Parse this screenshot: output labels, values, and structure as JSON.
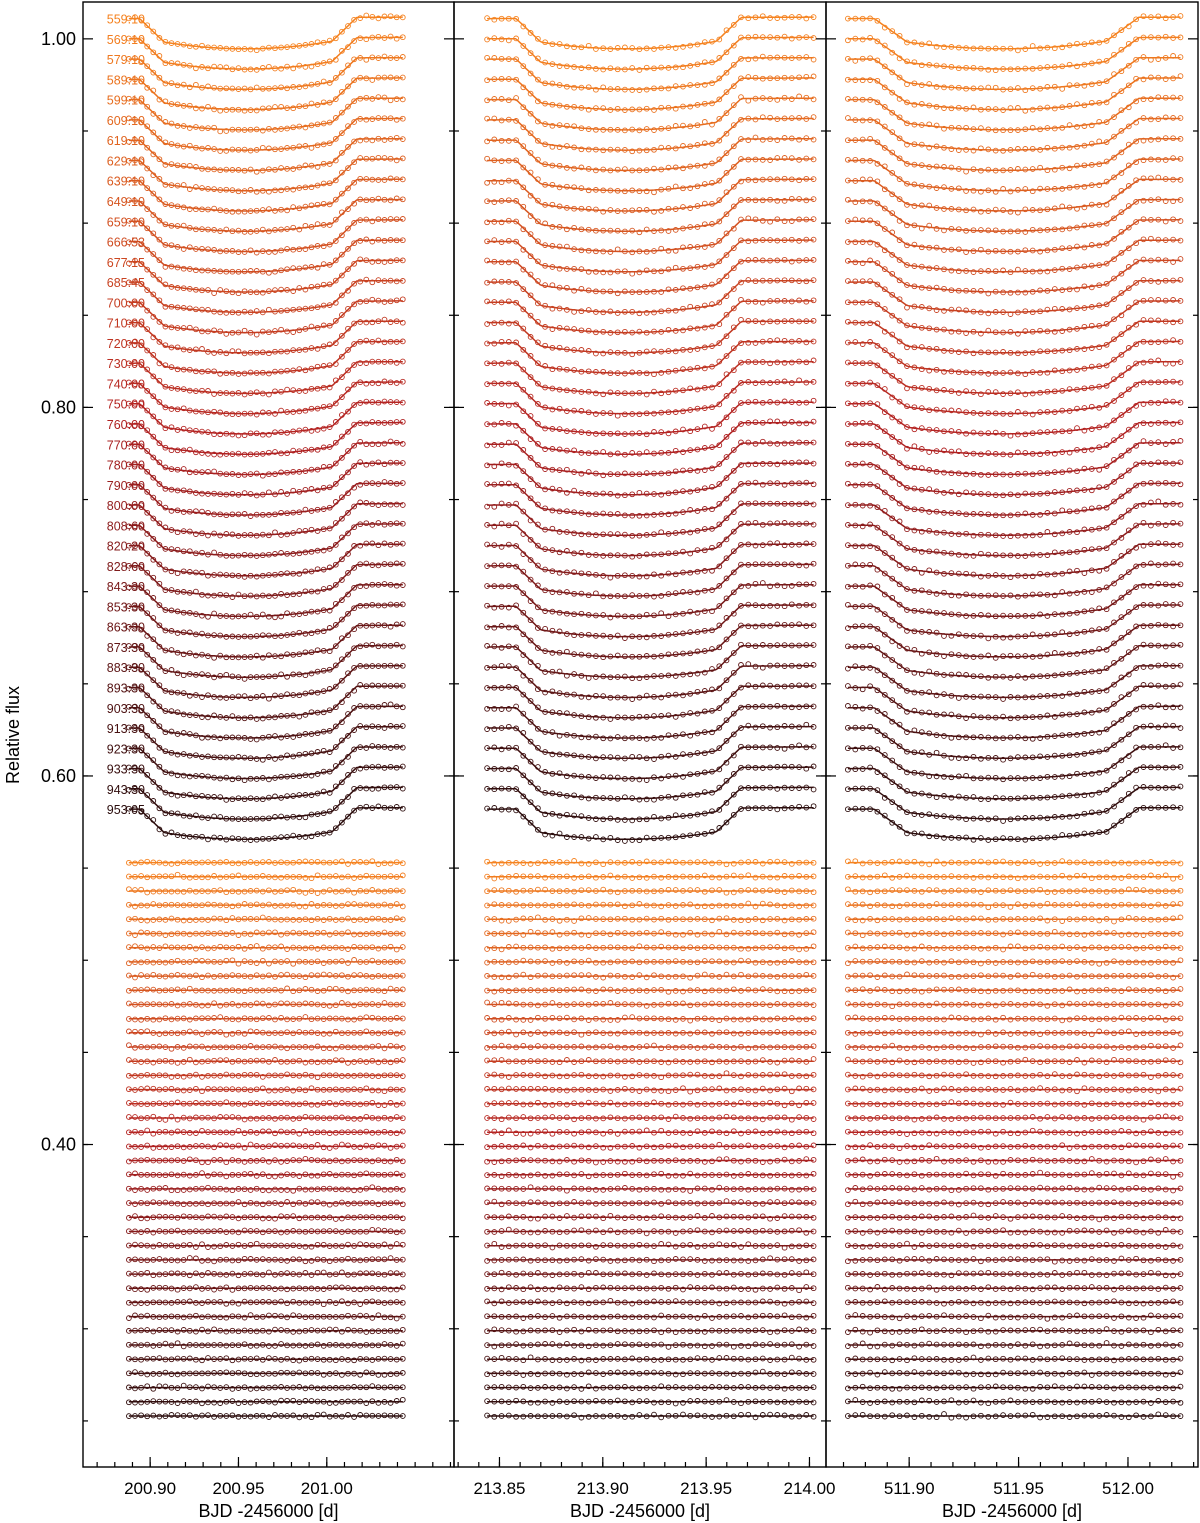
{
  "chart_data": {
    "type": "scatter",
    "ylabel": "Relative flux",
    "ylim": [
      0.225,
      1.02
    ],
    "y_ticks": [
      "1.00",
      "0.80",
      "0.60",
      "0.40"
    ],
    "y_tick_values": [
      1.0,
      0.8,
      0.6,
      0.4
    ],
    "wavelengths": [
      "559.10",
      "569.10",
      "579.10",
      "589.10",
      "599.10",
      "609.10",
      "619.10",
      "629.10",
      "639.10",
      "649.10",
      "659.10",
      "666.53",
      "677.15",
      "685.45",
      "700.00",
      "710.00",
      "720.00",
      "730.00",
      "740.00",
      "750.00",
      "760.00",
      "770.00",
      "780.00",
      "790.00",
      "800.00",
      "808.60",
      "820.20",
      "828.60",
      "843.30",
      "853.30",
      "863.30",
      "873.30",
      "883.30",
      "893.30",
      "903.30",
      "913.30",
      "923.30",
      "933.30",
      "943.30",
      "953.05"
    ],
    "top_baseline_first": 1.011,
    "top_offset_step": 0.011,
    "residual_baseline_first": 0.553,
    "residual_offset_step": 0.0077,
    "color_gradient": [
      "#f5821f",
      "#b22222",
      "#2a0c0c"
    ],
    "panels": [
      {
        "name": "night-1",
        "xlabel": "BJD -2456000 [d]",
        "xlim": [
          200.862,
          201.072
        ],
        "x_ticks": [
          "200.90",
          "200.95",
          "201.00"
        ],
        "x_tick_values": [
          200.9,
          200.95,
          201.0
        ],
        "data_start": 200.888,
        "data_end": 201.043,
        "ingress_start": 200.894,
        "ingress_end": 200.908,
        "egress_start": 201.003,
        "egress_end": 201.017,
        "transit_depth": 0.0155
      },
      {
        "name": "night-2",
        "xlabel": "BJD -2456000 [d]",
        "xlim": [
          213.828,
          214.008
        ],
        "x_ticks": [
          "213.85",
          "213.90",
          "213.95",
          "214.00"
        ],
        "x_tick_values": [
          213.85,
          213.9,
          213.95,
          214.0
        ],
        "data_start": 213.844,
        "data_end": 214.002,
        "ingress_start": 213.858,
        "ingress_end": 213.87,
        "egress_start": 213.955,
        "egress_end": 213.967,
        "transit_depth": 0.0155
      },
      {
        "name": "night-3",
        "xlabel": "BJD -2456000 [d]",
        "xlim": [
          511.862,
          512.032
        ],
        "x_ticks": [
          "511.90",
          "511.95",
          "512.00"
        ],
        "x_tick_values": [
          511.9,
          511.95,
          512.0
        ],
        "data_start": 511.872,
        "data_end": 512.024,
        "ingress_start": 511.884,
        "ingress_end": 511.899,
        "egress_start": 511.99,
        "egress_end": 512.005,
        "transit_depth": 0.0155
      }
    ]
  }
}
